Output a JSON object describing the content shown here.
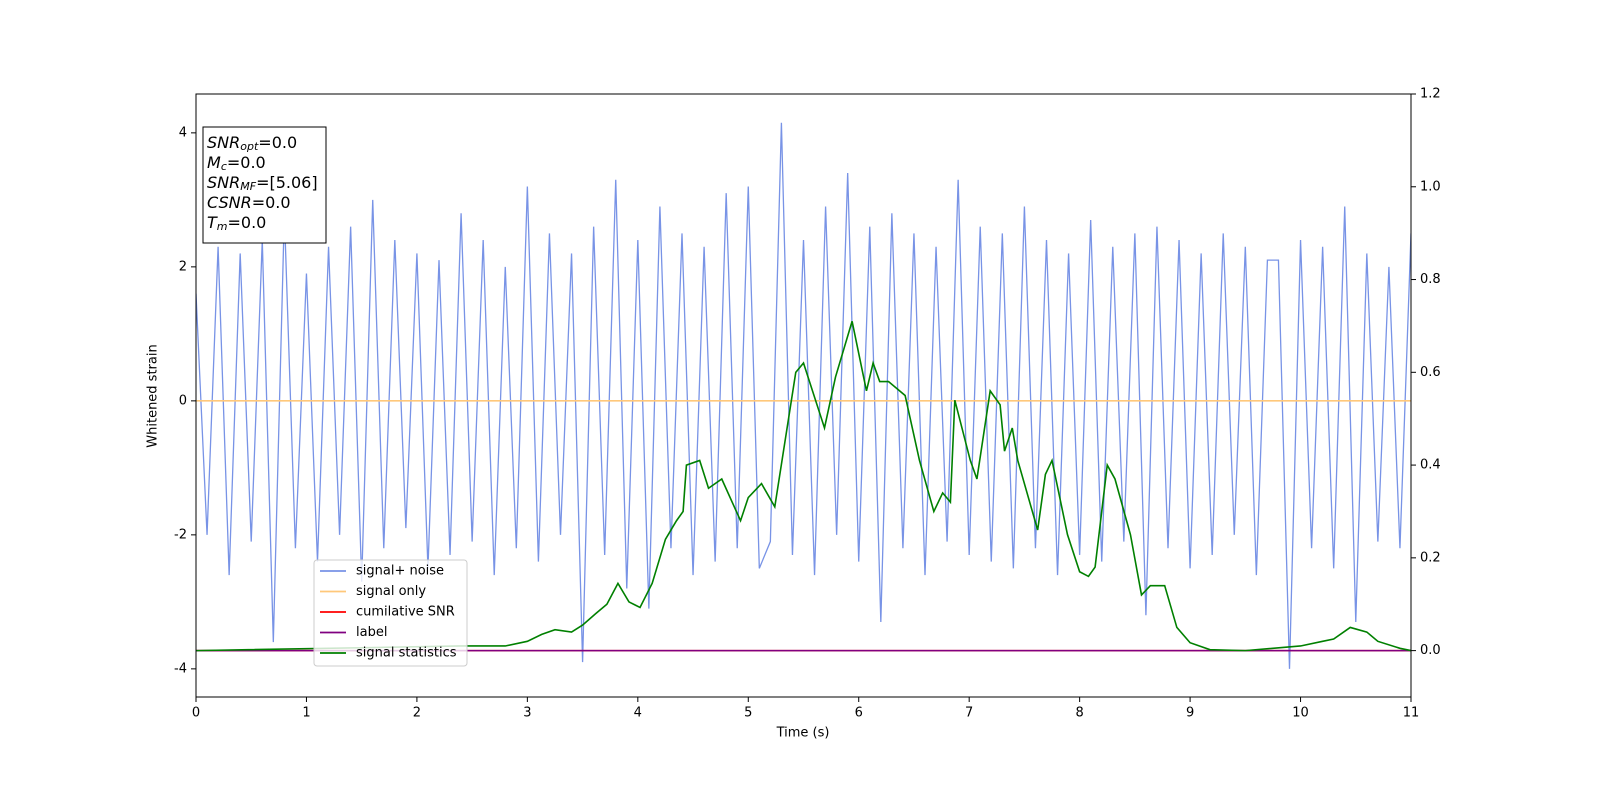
{
  "chart_data": {
    "type": "line",
    "xlabel": "Time (s)",
    "ylabel": "Whitened strain",
    "xlim": [
      0,
      11
    ],
    "xticks": [
      0,
      1,
      2,
      3,
      4,
      5,
      6,
      7,
      8,
      9,
      10,
      11
    ],
    "ylim": [
      -4.42,
      4.58
    ],
    "yticks": [
      -4,
      -2,
      0,
      2,
      4
    ],
    "y2lim": [
      -0.1,
      1.2
    ],
    "y2ticks": [
      {
        "value": 0,
        "label": "0.0"
      },
      0.2,
      0.4,
      0.6,
      0.8,
      {
        "value": 1,
        "label": "1.0"
      },
      1.2
    ],
    "legend": "lower left",
    "annotations": [
      {
        "main": "SNR",
        "sub": "opt",
        "rest": "=0.0"
      },
      {
        "main": "M",
        "sub": "c",
        "rest": "=0.0"
      },
      {
        "main": "SNR",
        "sub": "MF",
        "rest": "=[5.06]"
      },
      {
        "main": "CSNR",
        "sub": null,
        "rest": "=0.0"
      },
      {
        "main": "T",
        "sub": "m",
        "rest": "=0.0"
      }
    ],
    "series": [
      {
        "name": "signal+ noise",
        "color": "#7893e6",
        "x": [
          0,
          0.1,
          0.2,
          0.3,
          0.4,
          0.5,
          0.6,
          0.7,
          0.8,
          0.9,
          1,
          1.1,
          1.2,
          1.3,
          1.4,
          1.5,
          1.6,
          1.7,
          1.8,
          1.9,
          2,
          2.1,
          2.2,
          2.3,
          2.4,
          2.5,
          2.6,
          2.7,
          2.8,
          2.9,
          3,
          3.1,
          3.2,
          3.3,
          3.4,
          3.5,
          3.6,
          3.7,
          3.8,
          3.9,
          4,
          4.1,
          4.2,
          4.3,
          4.4,
          4.5,
          4.6,
          4.7,
          4.8,
          4.9,
          5,
          5.1,
          5.2,
          5.3,
          5.4,
          5.5,
          5.6,
          5.7,
          5.8,
          5.9,
          6,
          6.1,
          6.2,
          6.3,
          6.4,
          6.5,
          6.6,
          6.7,
          6.8,
          6.9,
          7,
          7.1,
          7.2,
          7.3,
          7.4,
          7.5,
          7.6,
          7.7,
          7.8,
          7.9,
          8,
          8.1,
          8.2,
          8.3,
          8.4,
          8.5,
          8.6,
          8.7,
          8.8,
          8.9,
          9,
          9.1,
          9.2,
          9.3,
          9.4,
          9.5,
          9.6,
          9.7,
          9.8,
          9.9,
          10,
          10.1,
          10.2,
          10.3,
          10.4,
          10.5,
          10.6,
          10.7,
          10.8,
          10.9,
          11
        ],
        "values": [
          1.6,
          -2.0,
          2.3,
          -2.6,
          2.2,
          -2.1,
          2.4,
          -3.6,
          2.8,
          -2.2,
          1.9,
          -2.4,
          2.3,
          -2.0,
          2.6,
          -2.7,
          3.0,
          -2.2,
          2.4,
          -1.9,
          2.2,
          -2.5,
          2.1,
          -2.3,
          2.8,
          -2.1,
          2.4,
          -2.6,
          2.0,
          -2.2,
          3.2,
          -2.4,
          2.5,
          -2.0,
          2.2,
          -3.9,
          2.6,
          -2.3,
          3.3,
          -2.8,
          2.4,
          -3.1,
          2.9,
          -2.2,
          2.5,
          -2.6,
          2.3,
          -2.4,
          3.1,
          -2.2,
          3.2,
          -2.5,
          -2.1,
          4.15,
          -2.3,
          2.4,
          -2.6,
          2.9,
          -2.0,
          3.4,
          -2.4,
          2.6,
          -3.3,
          2.8,
          -2.2,
          2.5,
          -2.6,
          2.3,
          -2.1,
          3.3,
          -2.3,
          2.6,
          -2.4,
          2.5,
          -2.5,
          2.9,
          -2.2,
          2.4,
          -2.6,
          2.2,
          -2.3,
          2.7,
          -2.4,
          2.3,
          -2.1,
          2.5,
          -3.2,
          2.6,
          -2.2,
          2.4,
          -2.5,
          2.2,
          -2.3,
          2.5,
          -2.0,
          2.3,
          -2.6,
          2.1,
          2.1,
          -4.0,
          2.4,
          -2.2,
          2.3,
          -2.5,
          2.9,
          -3.3,
          2.2,
          -2.1,
          2.0,
          -2.2,
          2.5
        ]
      },
      {
        "name": "signal only",
        "color": "#ffc87a",
        "x": [
          0,
          11
        ],
        "values": [
          0,
          0
        ]
      },
      {
        "name": "cumilative SNR",
        "color": "#ff0000",
        "axis": "y2",
        "x": [
          0,
          11
        ],
        "values": [
          0,
          0
        ]
      },
      {
        "name": "label",
        "color": "#800080",
        "axis": "y2",
        "x": [
          0,
          11
        ],
        "values": [
          0,
          0
        ]
      },
      {
        "name": "signal statistics",
        "color": "#008000",
        "axis": "y2",
        "x": [
          0,
          2.4,
          2.8,
          3.0,
          3.13,
          3.25,
          3.4,
          3.5,
          3.62,
          3.72,
          3.82,
          3.92,
          4.02,
          4.13,
          4.25,
          4.35,
          4.41,
          4.44,
          4.56,
          4.64,
          4.76,
          4.93,
          5.0,
          5.12,
          5.24,
          5.43,
          5.5,
          5.69,
          5.79,
          5.94,
          6.07,
          6.13,
          6.19,
          6.27,
          6.42,
          6.55,
          6.68,
          6.76,
          6.83,
          6.87,
          7.01,
          7.07,
          7.19,
          7.28,
          7.32,
          7.39,
          7.44,
          7.62,
          7.69,
          7.75,
          7.89,
          8.0,
          8.08,
          8.14,
          8.25,
          8.32,
          8.46,
          8.56,
          8.64,
          8.77,
          8.88,
          9.0,
          9.18,
          9.5,
          10.0,
          10.2,
          10.3,
          10.45,
          10.6,
          10.7,
          10.9,
          11
        ],
        "values": [
          0,
          0.01,
          0.01,
          0.02,
          0.035,
          0.045,
          0.04,
          0.055,
          0.08,
          0.1,
          0.145,
          0.105,
          0.093,
          0.145,
          0.24,
          0.28,
          0.3,
          0.4,
          0.41,
          0.35,
          0.37,
          0.28,
          0.33,
          0.36,
          0.31,
          0.6,
          0.62,
          0.48,
          0.59,
          0.71,
          0.56,
          0.62,
          0.58,
          0.58,
          0.55,
          0.41,
          0.3,
          0.34,
          0.32,
          0.54,
          0.41,
          0.37,
          0.56,
          0.53,
          0.43,
          0.48,
          0.41,
          0.26,
          0.38,
          0.41,
          0.25,
          0.17,
          0.16,
          0.18,
          0.4,
          0.37,
          0.25,
          0.12,
          0.14,
          0.14,
          0.05,
          0.017,
          0.002,
          0,
          0.01,
          0.02,
          0.025,
          0.05,
          0.04,
          0.02,
          0.005,
          0
        ]
      }
    ]
  }
}
